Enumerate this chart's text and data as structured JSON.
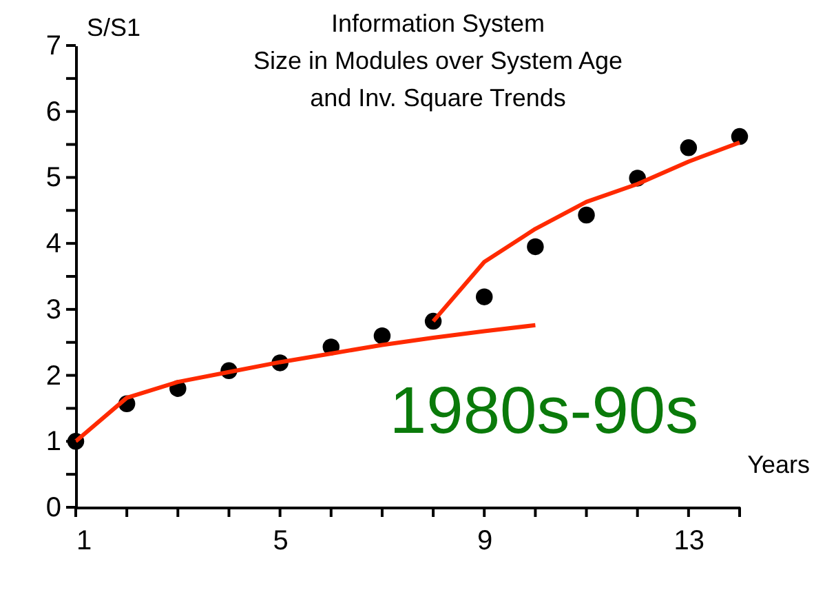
{
  "chart_data": {
    "type": "scatter",
    "title": "Information System\nSize in Modules over System Age\nand Inv. Square Trends",
    "xlabel": "Years",
    "ylabel": "S/S1",
    "annotations": [
      "1980s-90s"
    ],
    "xlim": [
      1,
      14
    ],
    "ylim": [
      0,
      7
    ],
    "xticks": [
      1,
      {
        "value": 2,
        "label": null
      },
      {
        "value": 3,
        "label": null
      },
      {
        "value": 4,
        "label": null
      },
      5,
      {
        "value": 6,
        "label": null
      },
      {
        "value": 7,
        "label": null
      },
      {
        "value": 8,
        "label": null
      },
      9,
      {
        "value": 10,
        "label": null
      },
      {
        "value": 11,
        "label": null
      },
      {
        "value": 12,
        "label": null
      },
      13,
      {
        "value": 14,
        "label": null
      }
    ],
    "yticks": [
      0,
      {
        "value": 0.5,
        "label": null
      },
      1,
      {
        "value": 1.5,
        "label": null
      },
      2,
      {
        "value": 2.5,
        "label": null
      },
      3,
      {
        "value": 3.5,
        "label": null
      },
      4,
      {
        "value": 4.5,
        "label": null
      },
      5,
      {
        "value": 5.5,
        "label": null
      },
      6,
      {
        "value": 6.5,
        "label": null
      },
      7
    ],
    "grid": false,
    "series": [
      {
        "color": "#000000",
        "marker": "circle",
        "x": [
          1,
          2,
          3,
          4,
          5,
          6,
          7,
          8,
          9,
          10,
          11,
          12,
          13,
          14
        ],
        "values": [
          1.0,
          1.57,
          1.8,
          2.07,
          2.19,
          2.43,
          2.6,
          2.82,
          3.19,
          3.95,
          4.43,
          4.99,
          5.45,
          5.62
        ]
      },
      {
        "type": "line",
        "color": "#ff2a00",
        "marker": "none",
        "line_style": "solid",
        "x": [
          1,
          2,
          3,
          4,
          5,
          6,
          7,
          8,
          9,
          10
        ],
        "values": [
          1.0,
          1.66,
          1.9,
          2.05,
          2.2,
          2.33,
          2.46,
          2.57,
          2.67,
          2.76
        ]
      },
      {
        "type": "line",
        "color": "#ff2a00",
        "marker": "none",
        "line_style": "solid",
        "x": [
          8,
          9,
          10,
          11,
          12,
          13,
          14
        ],
        "values": [
          2.82,
          3.72,
          4.22,
          4.63,
          4.9,
          5.24,
          5.53
        ]
      }
    ]
  }
}
